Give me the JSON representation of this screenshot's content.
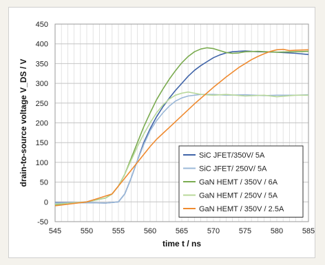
{
  "chart_data": {
    "type": "line",
    "title": "",
    "xlabel": "time t / ns",
    "ylabel": "drain-to-source voltage V_DS / V",
    "xlim": [
      545,
      585
    ],
    "ylim": [
      -50,
      450
    ],
    "x_ticks": [
      545,
      550,
      555,
      560,
      565,
      570,
      575,
      580,
      585
    ],
    "x_tick_labels": [
      "545",
      "550",
      "555",
      "560",
      "565",
      "570",
      "575",
      "580",
      "585"
    ],
    "y_ticks": [
      -50,
      0,
      50,
      100,
      150,
      200,
      250,
      300,
      350,
      400,
      450
    ],
    "y_tick_labels": [
      "-50",
      "0",
      "50",
      "100",
      "150",
      "200",
      "250",
      "300",
      "350",
      "400",
      "450"
    ],
    "grid": true,
    "legend_position": "bottom-right",
    "series": [
      {
        "name": "SiC JFET/350V/ 5A",
        "color": "#3f63a8",
        "x": [
          545,
          550,
          553,
          555,
          556,
          557,
          558,
          559,
          560,
          561,
          562,
          563,
          564,
          565,
          566,
          567,
          568,
          569,
          570,
          571,
          572,
          573,
          574,
          575,
          577,
          580,
          583,
          585
        ],
        "y": [
          -2,
          -2,
          -3,
          0,
          20,
          60,
          105,
          150,
          185,
          215,
          240,
          262,
          282,
          300,
          318,
          333,
          345,
          355,
          365,
          372,
          377,
          380,
          381,
          382,
          380,
          379,
          376,
          373
        ]
      },
      {
        "name": "SiC JFET/ 250V/ 5A",
        "color": "#9bb8d8",
        "x": [
          545,
          550,
          553,
          555,
          556,
          557,
          558,
          559,
          560,
          561,
          562,
          563,
          564,
          565,
          566,
          567,
          568,
          570,
          572,
          575,
          578,
          580,
          583,
          585
        ],
        "y": [
          -3,
          -2,
          -3,
          0,
          20,
          60,
          105,
          145,
          180,
          205,
          225,
          242,
          255,
          263,
          268,
          270,
          272,
          272,
          270,
          271,
          269,
          270,
          270,
          271
        ]
      },
      {
        "name": "GaN HEMT / 350V / 6A",
        "color": "#7aab4f",
        "x": [
          545,
          550,
          553,
          554,
          555,
          556,
          557,
          558,
          559,
          560,
          561,
          562,
          563,
          564,
          565,
          566,
          567,
          568,
          569,
          570,
          571,
          572,
          573,
          574,
          575,
          577,
          580,
          583,
          585
        ],
        "y": [
          -8,
          0,
          10,
          20,
          40,
          70,
          110,
          150,
          190,
          225,
          258,
          285,
          310,
          332,
          352,
          368,
          380,
          387,
          390,
          388,
          383,
          378,
          376,
          377,
          380,
          381,
          379,
          380,
          381
        ]
      },
      {
        "name": "GaN HEMT / 250V / 5A",
        "color": "#b8d89a",
        "x": [
          545,
          550,
          553,
          554,
          555,
          556,
          557,
          558,
          559,
          560,
          561,
          562,
          563,
          564,
          565,
          566,
          567,
          568,
          570,
          572,
          575,
          578,
          580,
          583,
          585
        ],
        "y": [
          -6,
          0,
          10,
          20,
          40,
          70,
          105,
          140,
          172,
          200,
          225,
          245,
          260,
          270,
          275,
          278,
          275,
          272,
          270,
          272,
          268,
          270,
          266,
          270,
          270
        ]
      },
      {
        "name": "GaN HEMT / 350V / 2.5A",
        "color": "#ef8a2f",
        "x": [
          545,
          550,
          552,
          554,
          555,
          556,
          557,
          558,
          559,
          560,
          561,
          562,
          563,
          564,
          565,
          566,
          567,
          568,
          569,
          570,
          571,
          572,
          573,
          574,
          575,
          576,
          577,
          578,
          579,
          580,
          581,
          582,
          583,
          585
        ],
        "y": [
          -10,
          0,
          10,
          20,
          40,
          60,
          80,
          100,
          120,
          140,
          158,
          173,
          188,
          203,
          218,
          233,
          248,
          262,
          276,
          290,
          303,
          316,
          328,
          340,
          350,
          360,
          368,
          375,
          381,
          385,
          386,
          383,
          384,
          385
        ]
      }
    ]
  }
}
